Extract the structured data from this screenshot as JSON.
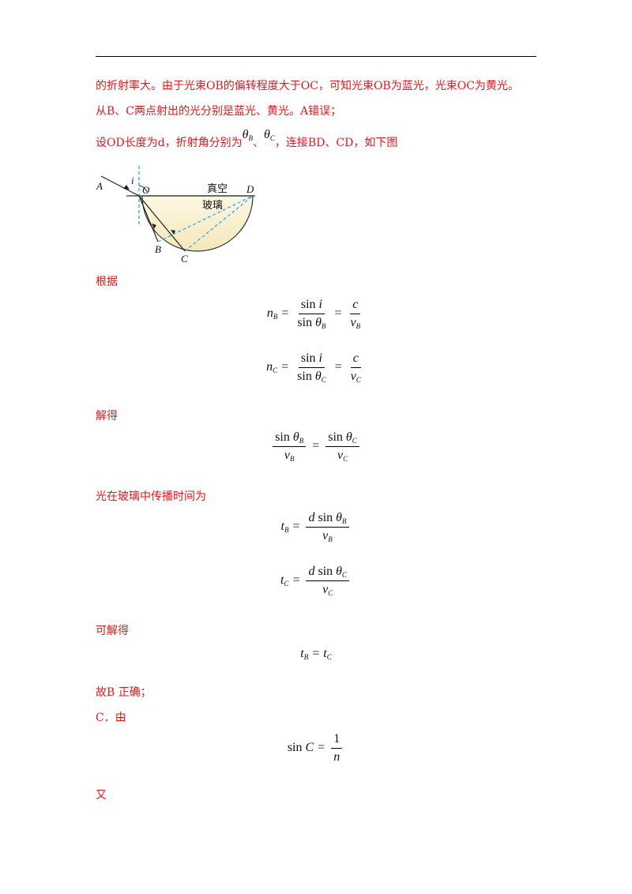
{
  "text": {
    "line1": "的折射率大。由于光束OB的偏转程度大于OC，可知光束OB为蓝光，光束OC为黄光。",
    "line2": "从B、C两点射出的光分别是蓝光、黄光。A错误；",
    "line3_a": "设OD长度为d，折射角分别为",
    "line3_b": "、",
    "line3_c": "，连接BD、CD，如下图",
    "genju": "根据",
    "jiede": "解得",
    "guang": "光在玻璃中传播时间为",
    "kejiede": "可解得",
    "gu": "故B 正确；",
    "c_you": "C．由",
    "you": "又"
  },
  "figure": {
    "label_A": "A",
    "label_i": "i",
    "label_O": "O",
    "label_D": "D",
    "label_B": "B",
    "label_C": "C",
    "label_vacuum": "真空",
    "label_glass": "玻璃"
  },
  "math": {
    "n": "n",
    "sin": "sin",
    "i": "i",
    "theta": "θ",
    "c": "c",
    "v": "v",
    "B": "B",
    "C": "C",
    "t": "t",
    "d": "d",
    "one": "1",
    "eq": "="
  }
}
